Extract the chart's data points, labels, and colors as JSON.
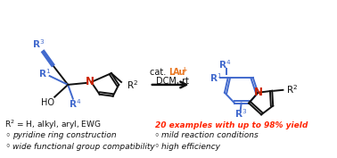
{
  "bg_color": "#ffffff",
  "orange_color": "#e87722",
  "blue_color": "#4169cd",
  "red_color": "#cc2200",
  "black_color": "#111111",
  "highlight_color": "#ff2200",
  "r2_line": "R² = H, alkyl, aryl, EWG",
  "highlight_text": "20 examples with up to 98% yield",
  "bullet_items_left": [
    "pyridine ring construction",
    "wide functional group compatibility"
  ],
  "bullet_items_right": [
    "mild reaction conditions",
    "high efficiency"
  ]
}
